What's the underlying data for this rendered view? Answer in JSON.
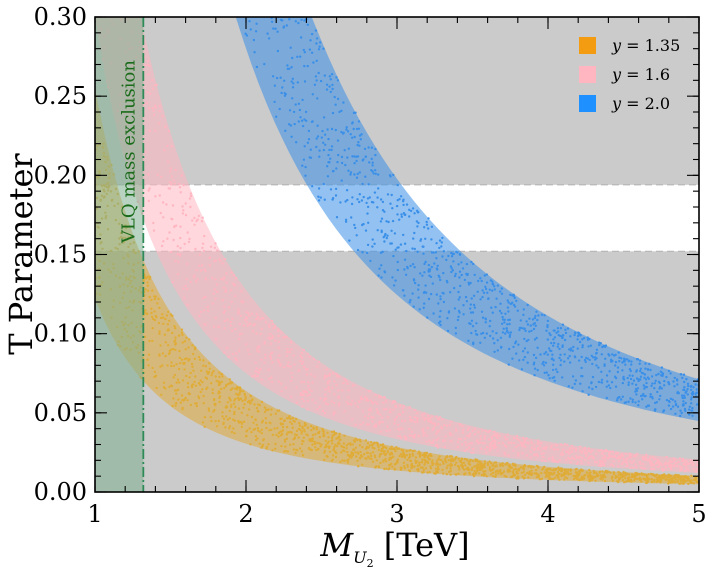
{
  "chart_data": {
    "type": "scatter",
    "xlabel": "M",
    "xlabel_sub": "U",
    "xlabel_subsub": "2",
    "xlabel_unit": " [TeV]",
    "ylabel": "T Parameter",
    "xlim": [
      1,
      5
    ],
    "ylim": [
      0,
      0.3
    ],
    "xticks": [
      1,
      2,
      3,
      4,
      5
    ],
    "xtick_labels": [
      "1",
      "2",
      "3",
      "4",
      "5"
    ],
    "yticks": [
      0.0,
      0.05,
      0.1,
      0.15,
      0.2,
      0.25,
      0.3
    ],
    "ytick_labels": [
      "0.00",
      "0.05",
      "0.10",
      "0.15",
      "0.20",
      "0.25",
      "0.30"
    ],
    "allowed_band": [
      0.152,
      0.194
    ],
    "exclusion": {
      "x_max": 1.32,
      "label": "VLQ mass exclusion",
      "color": "#7fae8f"
    },
    "legend_position": "top-right",
    "series": [
      {
        "name": "y = 1.35",
        "legend_prefix": "y",
        "legend_value": "= 1.35",
        "color": "#f39c12",
        "band_color": "#e0ac38",
        "coef_low": 0.122,
        "coef_high": 0.255
      },
      {
        "name": "y = 1.6",
        "legend_prefix": "y",
        "legend_value": "= 1.6",
        "color": "#ffb6c1",
        "band_color": "#ffb6c1",
        "coef_low": 0.3,
        "coef_high": 0.51
      },
      {
        "name": "y = 2.0",
        "legend_prefix": "y",
        "legend_value": "= 2.0",
        "color": "#1e90ff",
        "band_color": "#3a8fe8",
        "coef_low": 1.12,
        "coef_high": 1.78
      }
    ]
  }
}
